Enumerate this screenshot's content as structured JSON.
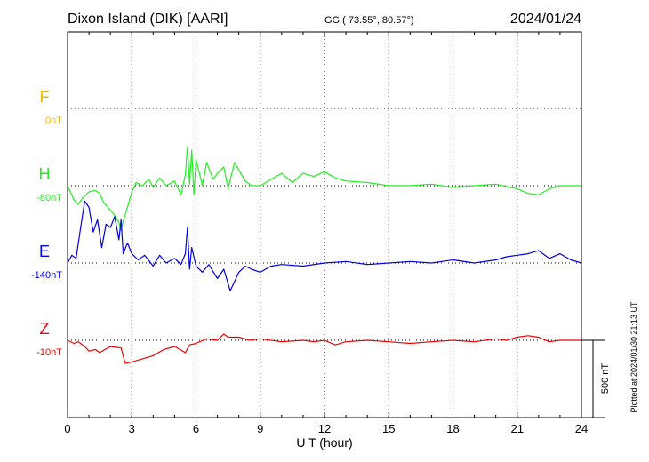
{
  "header": {
    "station": "Dixon Island (DIK)  [AARI]",
    "coords": "GG ( 73.55°,  80.57°)",
    "date": "2024/01/24"
  },
  "plotted_note": "Plotted at 2024/01/30 21:13 UT",
  "scale_label": "500 nT",
  "chart_data": {
    "type": "line",
    "xlabel": "U T (hour)",
    "xlim": [
      0,
      24
    ],
    "x_ticks": [
      0,
      3,
      6,
      9,
      12,
      15,
      18,
      21,
      24
    ],
    "x_tick_labels": [
      "0",
      "3",
      "6",
      "9",
      "12",
      "15",
      "18",
      "21",
      "24"
    ],
    "scale_bar_nT": 500,
    "grid": true,
    "series": [
      {
        "name": "F",
        "baseline_label": "0nT",
        "color": "#f0b400",
        "x": [],
        "values": []
      },
      {
        "name": "H",
        "baseline_label": "-80nT",
        "color": "#22ee22",
        "x": [
          0,
          0.3,
          0.5,
          0.7,
          1.0,
          1.3,
          1.5,
          1.7,
          2.0,
          2.2,
          2.4,
          2.5,
          2.6,
          2.8,
          3.0,
          3.2,
          3.5,
          3.8,
          4.0,
          4.3,
          4.6,
          5.0,
          5.3,
          5.5,
          5.6,
          5.7,
          5.8,
          5.9,
          6.0,
          6.3,
          6.5,
          6.8,
          7.0,
          7.3,
          7.5,
          7.8,
          8.0,
          8.3,
          8.6,
          9.0,
          9.5,
          10.0,
          10.5,
          11.0,
          11.5,
          12.0,
          12.5,
          13.0,
          14.0,
          15.0,
          16.0,
          17.0,
          18.0,
          19.0,
          20.0,
          21.0,
          21.5,
          22.0,
          22.5,
          23.0,
          23.5,
          24.0
        ],
        "values": [
          0,
          -90,
          -120,
          -80,
          -40,
          -30,
          -50,
          -110,
          -160,
          -190,
          -240,
          -290,
          -230,
          -140,
          -40,
          20,
          0,
          40,
          -10,
          50,
          0,
          30,
          -60,
          70,
          250,
          10,
          230,
          -60,
          170,
          0,
          150,
          40,
          80,
          120,
          -20,
          150,
          100,
          30,
          0,
          0,
          40,
          80,
          20,
          80,
          60,
          90,
          50,
          30,
          20,
          0,
          0,
          10,
          -10,
          0,
          10,
          -20,
          -50,
          -60,
          -20,
          0,
          0,
          0
        ]
      },
      {
        "name": "E",
        "baseline_label": "-140nT",
        "color": "#0000dd",
        "x": [
          0,
          0.2,
          0.4,
          0.6,
          0.8,
          1.0,
          1.2,
          1.4,
          1.6,
          1.8,
          2.0,
          2.2,
          2.4,
          2.5,
          2.6,
          2.8,
          3.0,
          3.3,
          3.6,
          4.0,
          4.3,
          4.6,
          5.0,
          5.3,
          5.5,
          5.6,
          5.7,
          5.8,
          6.0,
          6.3,
          6.6,
          7.0,
          7.3,
          7.6,
          8.0,
          8.3,
          8.6,
          9.0,
          9.5,
          10.0,
          11.0,
          12.0,
          13.0,
          14.0,
          15.0,
          16.0,
          17.0,
          18.0,
          19.0,
          20.0,
          20.5,
          21.0,
          21.5,
          22.0,
          22.5,
          23.0,
          23.5,
          24.0
        ],
        "values": [
          0,
          50,
          30,
          220,
          400,
          360,
          200,
          280,
          100,
          250,
          230,
          300,
          150,
          280,
          60,
          130,
          60,
          20,
          50,
          -20,
          50,
          0,
          30,
          -10,
          60,
          230,
          -40,
          100,
          -20,
          -60,
          -10,
          -100,
          -40,
          -180,
          -60,
          -20,
          -40,
          -60,
          -20,
          -10,
          -20,
          0,
          10,
          -10,
          0,
          10,
          0,
          20,
          0,
          20,
          40,
          50,
          60,
          80,
          30,
          60,
          20,
          0
        ]
      },
      {
        "name": "Z",
        "baseline_label": "-10nT",
        "color": "#ee0000",
        "x": [
          0,
          0.3,
          0.5,
          0.8,
          1.0,
          1.3,
          1.5,
          2.0,
          2.5,
          2.7,
          3.0,
          3.5,
          4.0,
          4.5,
          5.0,
          5.5,
          5.7,
          6.0,
          6.5,
          7.0,
          7.3,
          7.5,
          8.0,
          8.5,
          9.0,
          10.0,
          11.0,
          11.5,
          12.0,
          12.5,
          13.0,
          14.0,
          15.0,
          16.0,
          17.0,
          18.0,
          19.0,
          20.0,
          20.5,
          21.0,
          21.5,
          22.0,
          22.5,
          23.0,
          24.0
        ],
        "values": [
          0,
          -20,
          -10,
          -40,
          -70,
          -60,
          -80,
          -40,
          -50,
          -150,
          -140,
          -120,
          -100,
          -60,
          -40,
          -80,
          -30,
          -20,
          10,
          0,
          40,
          20,
          20,
          0,
          10,
          -10,
          0,
          -10,
          0,
          -30,
          -10,
          0,
          -10,
          -20,
          -10,
          0,
          -10,
          10,
          0,
          20,
          30,
          20,
          -10,
          0,
          0
        ]
      }
    ]
  }
}
